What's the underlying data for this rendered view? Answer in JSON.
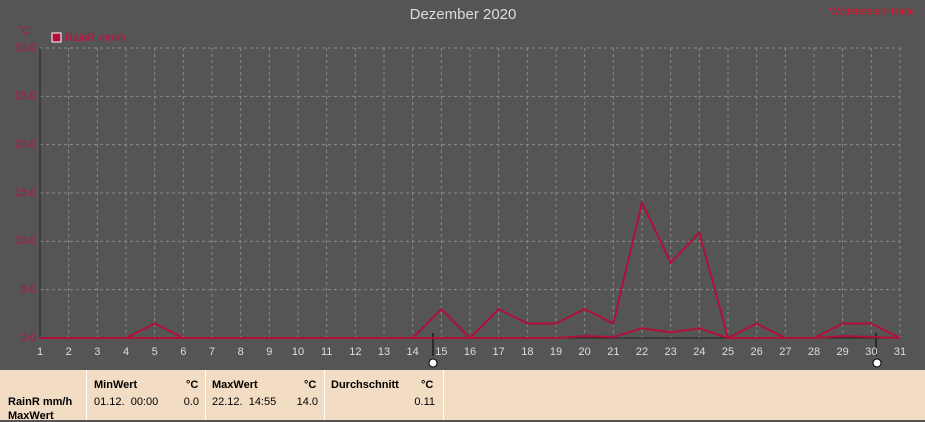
{
  "chart_data": {
    "type": "line",
    "title": "Dezember 2020",
    "station": "Wetterstation Hatte",
    "y_unit": "°C",
    "x": [
      1,
      2,
      3,
      4,
      5,
      6,
      7,
      8,
      9,
      10,
      11,
      12,
      13,
      14,
      15,
      16,
      17,
      18,
      19,
      20,
      21,
      22,
      23,
      24,
      25,
      26,
      27,
      28,
      29,
      30,
      31
    ],
    "xlim": [
      1,
      31
    ],
    "xticks": [
      1,
      2,
      3,
      4,
      5,
      6,
      7,
      8,
      9,
      10,
      11,
      12,
      13,
      14,
      15,
      16,
      17,
      18,
      19,
      20,
      21,
      22,
      23,
      24,
      25,
      26,
      27,
      28,
      29,
      30,
      31
    ],
    "ylim": [
      0,
      30
    ],
    "yticks": [
      {
        "value": 0,
        "label": "0.0"
      },
      {
        "value": 5,
        "label": "5.0"
      },
      {
        "value": 10,
        "label": "10.0"
      },
      {
        "value": 15,
        "label": "15.0"
      },
      {
        "value": 20,
        "label": "20.0"
      },
      {
        "value": 25,
        "label": "25.0"
      },
      {
        "value": 30,
        "label": "30.0"
      }
    ],
    "grid": true,
    "series": [
      {
        "name": "RainR mm/h",
        "color": "#b0103a",
        "values": [
          0,
          0,
          0,
          0,
          1.5,
          0,
          0,
          0,
          0,
          0,
          0,
          0,
          0,
          0,
          3.0,
          0,
          3.0,
          1.5,
          1.5,
          3.0,
          1.5,
          14.0,
          7.8,
          10.9,
          0,
          1.5,
          0,
          0,
          1.5,
          1.5,
          0
        ]
      },
      {
        "color": "#b0103a",
        "values": [
          0,
          0,
          0,
          0,
          0,
          0,
          0,
          0,
          0,
          0,
          0,
          0,
          0,
          0,
          0,
          0,
          0,
          0,
          0,
          0.2,
          0.1,
          1.0,
          0.6,
          1.0,
          0,
          0,
          0,
          0,
          0.2,
          0.1,
          0
        ]
      }
    ]
  },
  "table": {
    "headers": [
      "MinWert",
      "°C",
      "MaxWert",
      "°C",
      "Durchschnitt",
      "°C"
    ],
    "rows": [
      [
        "RainR mm/h",
        "01.12.  00:00",
        "0.0",
        "22.12.  14:55",
        "14.0",
        "0.11"
      ],
      [
        "MaxWert"
      ]
    ]
  }
}
